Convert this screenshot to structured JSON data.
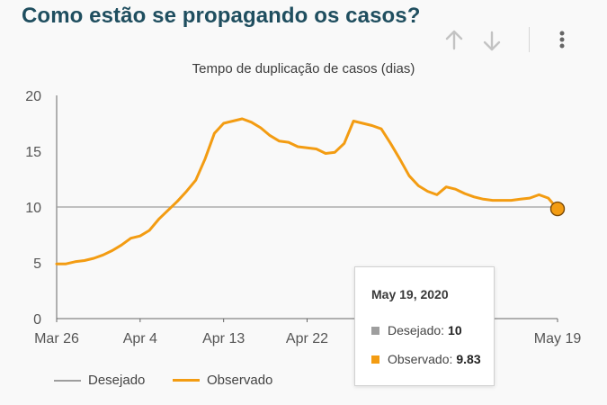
{
  "header": {
    "title": "Como estão se propagando os casos?",
    "sort_up_icon": "arrow-up-icon",
    "sort_down_icon": "arrow-down-icon",
    "menu_icon": "more-vert-icon"
  },
  "colors": {
    "title": "#1f4e5f",
    "observed": "#f39c12",
    "desired": "#9e9e9e",
    "axis": "#555555"
  },
  "chart_data": {
    "type": "line",
    "title": "Tempo de duplicação de casos (dias)",
    "xlabel": "",
    "ylabel": "",
    "ylim": [
      0,
      20
    ],
    "yticks": [
      "0",
      "5",
      "10",
      "15",
      "20"
    ],
    "xticks": [
      {
        "day": 0,
        "label": "Mar 26"
      },
      {
        "day": 9,
        "label": "Apr 4"
      },
      {
        "day": 18,
        "label": "Apr 13"
      },
      {
        "day": 27,
        "label": "Apr 22"
      },
      {
        "day": 54,
        "label": "May 19"
      }
    ],
    "grid": false,
    "legend_position": "bottom-left",
    "series": [
      {
        "name": "Desejado",
        "style": "flat",
        "values": [
          10,
          10
        ]
      },
      {
        "name": "Observado",
        "style": "line",
        "values": [
          4.9,
          4.9,
          5.1,
          5.2,
          5.4,
          5.7,
          6.1,
          6.6,
          7.2,
          7.4,
          7.9,
          8.9,
          9.7,
          10.5,
          11.4,
          12.4,
          14.3,
          16.6,
          17.5,
          17.7,
          17.9,
          17.6,
          17.1,
          16.4,
          15.9,
          15.8,
          15.4,
          15.3,
          15.2,
          14.8,
          14.9,
          15.7,
          17.7,
          17.5,
          17.3,
          17.0,
          15.7,
          14.3,
          12.8,
          11.9,
          11.4,
          11.1,
          11.8,
          11.6,
          11.2,
          10.9,
          10.7,
          10.6,
          10.6,
          10.6,
          10.7,
          10.8,
          11.1,
          10.8,
          9.83
        ]
      }
    ]
  },
  "legend": {
    "items": [
      {
        "label": "Desejado"
      },
      {
        "label": "Observado"
      }
    ]
  },
  "tooltip": {
    "date": "May 19, 2020",
    "rows": [
      {
        "label": "Desejado:",
        "value": "10"
      },
      {
        "label": "Observado:",
        "value": "9.83"
      }
    ]
  }
}
